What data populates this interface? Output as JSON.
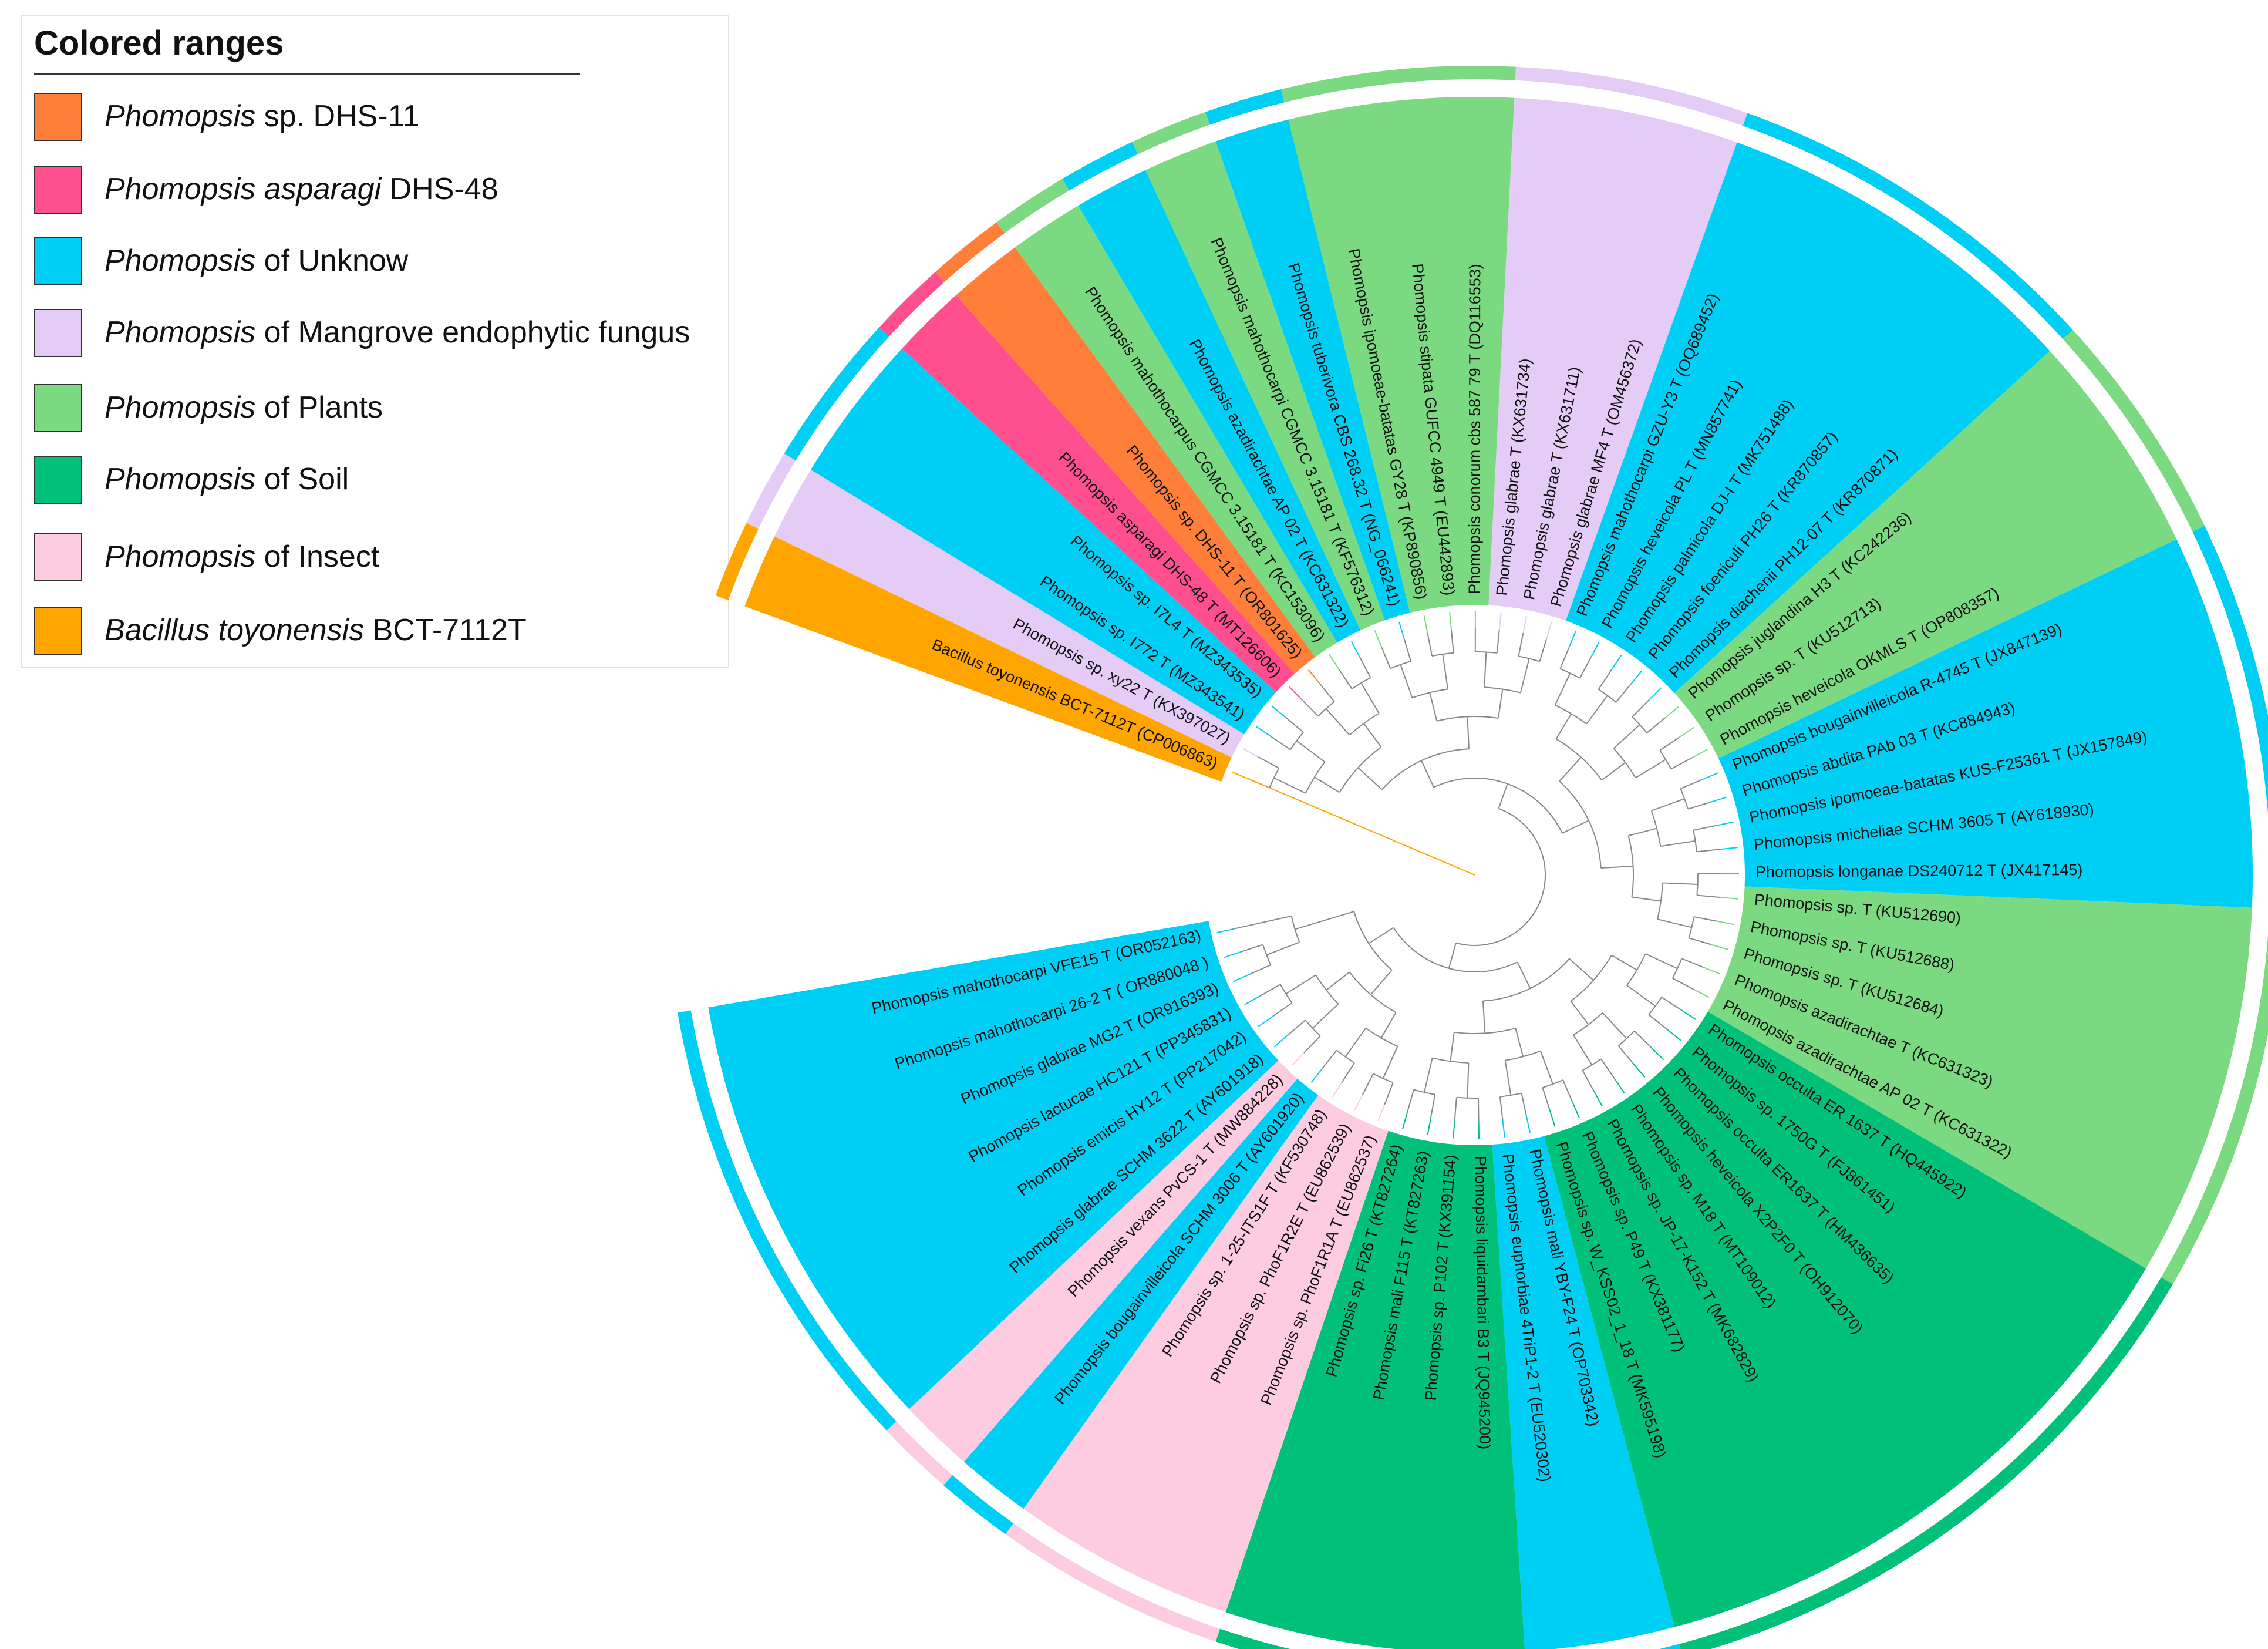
{
  "legend": {
    "title": "Colored ranges",
    "items": [
      {
        "key": "dhs11",
        "italic": "Phomopsis",
        "rest": " sp. DHS-11",
        "color": "#FF7F3A"
      },
      {
        "key": "dhs48",
        "italic": "Phomopsis asparagi",
        "rest": " DHS-48",
        "color": "#FF4F8E"
      },
      {
        "key": "unknown",
        "italic": "Phomopsis",
        "rest": " of Unknow",
        "color": "#00CFF5"
      },
      {
        "key": "mangrove",
        "italic": "Phomopsis",
        "rest": " of Mangrove endophytic fungus",
        "color": "#E4CCF6"
      },
      {
        "key": "plants",
        "italic": "Phomopsis",
        "rest": " of Plants",
        "color": "#7BD981"
      },
      {
        "key": "soil",
        "italic": "Phomopsis",
        "rest": " of Soil",
        "color": "#00C07A"
      },
      {
        "key": "insect",
        "italic": "Phomopsis",
        "rest": " of Insect",
        "color": "#FDCCE1"
      },
      {
        "key": "bacillus",
        "italic": "Bacillus toyonensis",
        "rest": " BCT-7112T",
        "color": "#FFA500"
      }
    ]
  },
  "tree": {
    "taxa": [
      {
        "label": "Bacillus toyonensis BCT-7112T (CP006863)",
        "group": "bacillus"
      },
      {
        "label": "Phomopsis sp. xy22 T (KX397027)",
        "group": "mangrove"
      },
      {
        "label": "Phomopsis sp. I772 T (MZ343541)",
        "group": "unknown"
      },
      {
        "label": "Phomopsis sp. I7L4 T (MZ343535)",
        "group": "unknown"
      },
      {
        "label": "Phomopsis asparagi DHS-48 T (MT126606)",
        "group": "dhs48"
      },
      {
        "label": "Phomopsis sp. DHS-11 T (OR801625)",
        "group": "dhs11"
      },
      {
        "label": "Phomopsis mahothocarpus CGMCC 3.15181 T (KC153096)",
        "group": "plants"
      },
      {
        "label": "Phomopsis azadirachtae AP 02 T (KC631322)",
        "group": "unknown"
      },
      {
        "label": "Phomopsis mahothocarpi CGMCC 3.15181 T (KF576312)",
        "group": "plants"
      },
      {
        "label": "Phomopsis tuberivora CBS 268.32 T (NG_066241)",
        "group": "unknown"
      },
      {
        "label": "Phomopsis ipomoeae-batatas GY28 T (KP890856)",
        "group": "plants"
      },
      {
        "label": "Phomopsis stipata GUFCC 4949 T (EU442893)",
        "group": "plants"
      },
      {
        "label": "Phomopsis conorum cbs 587 79 T (DQ116553)",
        "group": "plants"
      },
      {
        "label": "Phomopsis glabrae T (KX631734)",
        "group": "mangrove"
      },
      {
        "label": "Phomopsis glabrae T (KX631711)",
        "group": "mangrove"
      },
      {
        "label": "Phomopsis glabrae MF4 T (OM456372)",
        "group": "mangrove"
      },
      {
        "label": "Phomopsis mahothocarpi GZU-Y3 T (OQ689452)",
        "group": "unknown"
      },
      {
        "label": "Phomopsis heveicola PL T (MN857741)",
        "group": "unknown"
      },
      {
        "label": "Phomopsis palmicola DJ-I T (MK751488)",
        "group": "unknown"
      },
      {
        "label": "Phomopsis foeniculi PH26 T (KR870857)",
        "group": "unknown"
      },
      {
        "label": "Phomopsis diachenii PH12-07 T (KR870871)",
        "group": "unknown"
      },
      {
        "label": "Phomopsis juglandina H3 T (KC242236)",
        "group": "plants"
      },
      {
        "label": "Phomopsis sp. T (KU512713)",
        "group": "plants"
      },
      {
        "label": "Phomopsis heveicola OKMLS T (OP808357)",
        "group": "plants"
      },
      {
        "label": "Phomopsis bougainvilleicola R-4745 T (JX847139)",
        "group": "unknown"
      },
      {
        "label": "Phomopsis abdita PAb 03 T (KC884943)",
        "group": "unknown"
      },
      {
        "label": "Phomopsis ipomoeae-batatas KUS-F25361 T (JX157849)",
        "group": "unknown"
      },
      {
        "label": "Phomopsis micheliae SCHM 3605 T (AY618930)",
        "group": "unknown"
      },
      {
        "label": "Phomopsis longanae DS240712 T (JX417145)",
        "group": "unknown"
      },
      {
        "label": "Phomopsis sp. T (KU512690)",
        "group": "plants"
      },
      {
        "label": "Phomopsis sp. T (KU512688)",
        "group": "plants"
      },
      {
        "label": "Phomopsis sp. T (KU512684)",
        "group": "plants"
      },
      {
        "label": "Phomopsis azadirachtae T (KC631323)",
        "group": "plants"
      },
      {
        "label": "Phomopsis azadirachtae AP 02 T (KC631322)",
        "group": "plants"
      },
      {
        "label": "Phomopsis occulta ER 1637 T (HQ445922)",
        "group": "soil"
      },
      {
        "label": "Phomopsis sp. 1750G T (FJ861451)",
        "group": "soil"
      },
      {
        "label": "Phomopsis occulta ER1637 T (HM436635)",
        "group": "soil"
      },
      {
        "label": "Phomopsis heveicola X2P2F0 T (OH912070)",
        "group": "soil"
      },
      {
        "label": "Phomopsis sp. M18 T (MT109012)",
        "group": "soil"
      },
      {
        "label": "Phomopsis sp. JP-17-K152 T (MK682829)",
        "group": "soil"
      },
      {
        "label": "Phomopsis sp. P49 T (KX381177)",
        "group": "soil"
      },
      {
        "label": "Phomopsis sp. W_KSS02_1_18 T (MK595198)",
        "group": "soil"
      },
      {
        "label": "Phomopsis mali YBY-F24 T (OP703342)",
        "group": "unknown"
      },
      {
        "label": "Phomopsis euphorbiae 4TriP1-2 T (EU520302)",
        "group": "unknown"
      },
      {
        "label": "Phomopsis liquidambari B3 T (JQ945200)",
        "group": "soil"
      },
      {
        "label": "Phomopsis sp. P102 T (KX391154)",
        "group": "soil"
      },
      {
        "label": "Phomopsis mali F115 T (KT827263)",
        "group": "soil"
      },
      {
        "label": "Phomopsis sp. Fi26 T (KT827264)",
        "group": "soil"
      },
      {
        "label": "Phomopsis sp. PhoF1R1A T (EU862537)",
        "group": "insect"
      },
      {
        "label": "Phomopsis sp. PhoF1R2E T (EU862539)",
        "group": "insect"
      },
      {
        "label": "Phomopsis sp. 1-25-ITS1F T (KF530748)",
        "group": "insect"
      },
      {
        "label": "Phomopsis bougainvilleicola SCHM 3006 T (AY601920)",
        "group": "unknown"
      },
      {
        "label": "Phomopsis vexans PvCS-1 T (MW884228)",
        "group": "insect"
      },
      {
        "label": "Phomopsis glabrae SCHM 3622 T (AY601918)",
        "group": "unknown"
      },
      {
        "label": "Phomopsis emicis HY12 T (PP217042)",
        "group": "unknown"
      },
      {
        "label": "Phomopsis lactucae HC121 T (PP345831)",
        "group": "unknown"
      },
      {
        "label": "Phomopsis glabrae MG2 T (OR916393)",
        "group": "unknown"
      },
      {
        "label": "Phomopsis mahothocarpi 26-2 T  ( OR880048 )",
        "group": "unknown"
      },
      {
        "label": "Phomopsis mahothocarpi VFE15 T (OR052163)",
        "group": "unknown"
      }
    ]
  }
}
